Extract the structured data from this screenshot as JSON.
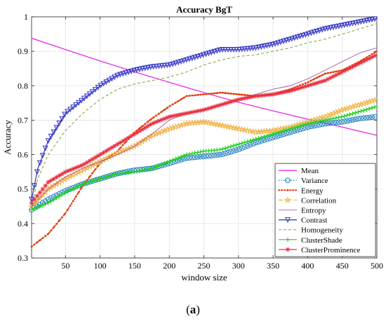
{
  "chart_data": {
    "type": "line",
    "title": "Accuracy BgT",
    "xlabel": "window size",
    "ylabel": "Accuracy",
    "xlim": [
      1,
      500
    ],
    "ylim": [
      0.3,
      1.0
    ],
    "xticks": [
      50,
      100,
      150,
      200,
      250,
      300,
      350,
      400,
      450,
      500
    ],
    "yticks": [
      0.3,
      0.4,
      0.5,
      0.6,
      0.7,
      0.8,
      0.9,
      1.0
    ],
    "ytick_labels": [
      "0.3",
      "0.4",
      "0.5",
      "0.6",
      "0.7",
      "0.8",
      "0.9",
      "1"
    ],
    "grid": true,
    "legend_position": "bottom-right",
    "series": [
      {
        "name": "Mean",
        "color": "#e619e6",
        "style": "solid",
        "marker": "none",
        "x": [
          1,
          50,
          100,
          150,
          200,
          250,
          300,
          350,
          400,
          450,
          500
        ],
        "y": [
          0.938,
          0.905,
          0.872,
          0.84,
          0.81,
          0.78,
          0.752,
          0.727,
          0.703,
          0.68,
          0.656
        ]
      },
      {
        "name": "Variance",
        "color": "#1f7fbf",
        "style": "dotted",
        "marker": "circle",
        "x": [
          1,
          25,
          50,
          75,
          100,
          125,
          150,
          175,
          200,
          225,
          250,
          275,
          300,
          325,
          350,
          375,
          400,
          425,
          450,
          475,
          500
        ],
        "y": [
          0.44,
          0.47,
          0.495,
          0.515,
          0.53,
          0.545,
          0.555,
          0.56,
          0.575,
          0.59,
          0.595,
          0.6,
          0.615,
          0.635,
          0.65,
          0.665,
          0.68,
          0.69,
          0.695,
          0.705,
          0.71
        ]
      },
      {
        "name": "Energy",
        "color": "#e03c0a",
        "style": "dots",
        "marker": "point",
        "x": [
          1,
          25,
          50,
          75,
          100,
          125,
          150,
          175,
          200,
          225,
          250,
          275,
          300,
          325,
          350,
          375,
          400,
          425,
          450,
          475,
          500
        ],
        "y": [
          0.333,
          0.37,
          0.43,
          0.51,
          0.575,
          0.61,
          0.665,
          0.705,
          0.74,
          0.77,
          0.775,
          0.78,
          0.775,
          0.77,
          0.775,
          0.79,
          0.81,
          0.835,
          0.845,
          0.87,
          0.9
        ]
      },
      {
        "name": "Correlation",
        "color": "#f0b040",
        "style": "dash-dot",
        "marker": "star",
        "x": [
          1,
          25,
          50,
          75,
          100,
          125,
          150,
          175,
          200,
          225,
          250,
          275,
          300,
          325,
          350,
          375,
          400,
          425,
          450,
          475,
          500
        ],
        "y": [
          0.45,
          0.5,
          0.53,
          0.555,
          0.58,
          0.605,
          0.625,
          0.655,
          0.675,
          0.69,
          0.695,
          0.685,
          0.675,
          0.665,
          0.67,
          0.68,
          0.695,
          0.71,
          0.73,
          0.745,
          0.76
        ]
      },
      {
        "name": "Entropy",
        "color": "#9a44a0",
        "style": "solid-thin",
        "marker": "none",
        "x": [
          1,
          25,
          50,
          75,
          100,
          125,
          150,
          175,
          200,
          225,
          250,
          275,
          300,
          325,
          350,
          375,
          400,
          425,
          450,
          475,
          500
        ],
        "y": [
          0.45,
          0.5,
          0.535,
          0.56,
          0.58,
          0.6,
          0.625,
          0.66,
          0.7,
          0.72,
          0.73,
          0.745,
          0.76,
          0.775,
          0.79,
          0.8,
          0.82,
          0.845,
          0.87,
          0.895,
          0.91
        ]
      },
      {
        "name": "Contrast",
        "color": "#3232c8",
        "style": "solid",
        "marker": "triangle-down",
        "x": [
          1,
          10,
          25,
          50,
          75,
          100,
          125,
          150,
          175,
          200,
          225,
          250,
          275,
          300,
          325,
          350,
          375,
          400,
          425,
          450,
          475,
          500
        ],
        "y": [
          0.47,
          0.56,
          0.64,
          0.72,
          0.76,
          0.8,
          0.83,
          0.845,
          0.855,
          0.86,
          0.875,
          0.89,
          0.905,
          0.905,
          0.91,
          0.92,
          0.935,
          0.95,
          0.965,
          0.975,
          0.985,
          0.995
        ]
      },
      {
        "name": "Homogeneity",
        "color": "#8db04a",
        "style": "dashed",
        "marker": "none",
        "x": [
          1,
          10,
          25,
          50,
          75,
          100,
          125,
          150,
          175,
          200,
          225,
          250,
          275,
          300,
          325,
          350,
          375,
          400,
          425,
          450,
          475,
          500
        ],
        "y": [
          0.45,
          0.53,
          0.6,
          0.67,
          0.72,
          0.76,
          0.79,
          0.805,
          0.815,
          0.825,
          0.84,
          0.86,
          0.875,
          0.885,
          0.89,
          0.9,
          0.91,
          0.925,
          0.935,
          0.95,
          0.965,
          0.98
        ]
      },
      {
        "name": "ClusterShade",
        "color": "#20d020",
        "style": "solid",
        "marker": "plus",
        "x": [
          1,
          25,
          50,
          75,
          100,
          125,
          150,
          175,
          200,
          225,
          250,
          275,
          300,
          325,
          350,
          375,
          400,
          425,
          450,
          475,
          500
        ],
        "y": [
          0.44,
          0.46,
          0.49,
          0.515,
          0.53,
          0.545,
          0.55,
          0.56,
          0.58,
          0.6,
          0.61,
          0.615,
          0.63,
          0.645,
          0.66,
          0.675,
          0.69,
          0.7,
          0.71,
          0.725,
          0.74
        ]
      },
      {
        "name": "ClusterProminence",
        "color": "#e83040",
        "style": "solid",
        "marker": "asterisk",
        "x": [
          1,
          25,
          50,
          75,
          100,
          125,
          150,
          175,
          200,
          225,
          250,
          275,
          300,
          325,
          350,
          375,
          400,
          425,
          450,
          475,
          500
        ],
        "y": [
          0.46,
          0.52,
          0.55,
          0.57,
          0.6,
          0.63,
          0.66,
          0.69,
          0.71,
          0.72,
          0.73,
          0.745,
          0.76,
          0.77,
          0.775,
          0.785,
          0.8,
          0.815,
          0.84,
          0.865,
          0.89
        ]
      }
    ]
  },
  "caption": {
    "open": "(",
    "letter": "a",
    "close": ")"
  }
}
